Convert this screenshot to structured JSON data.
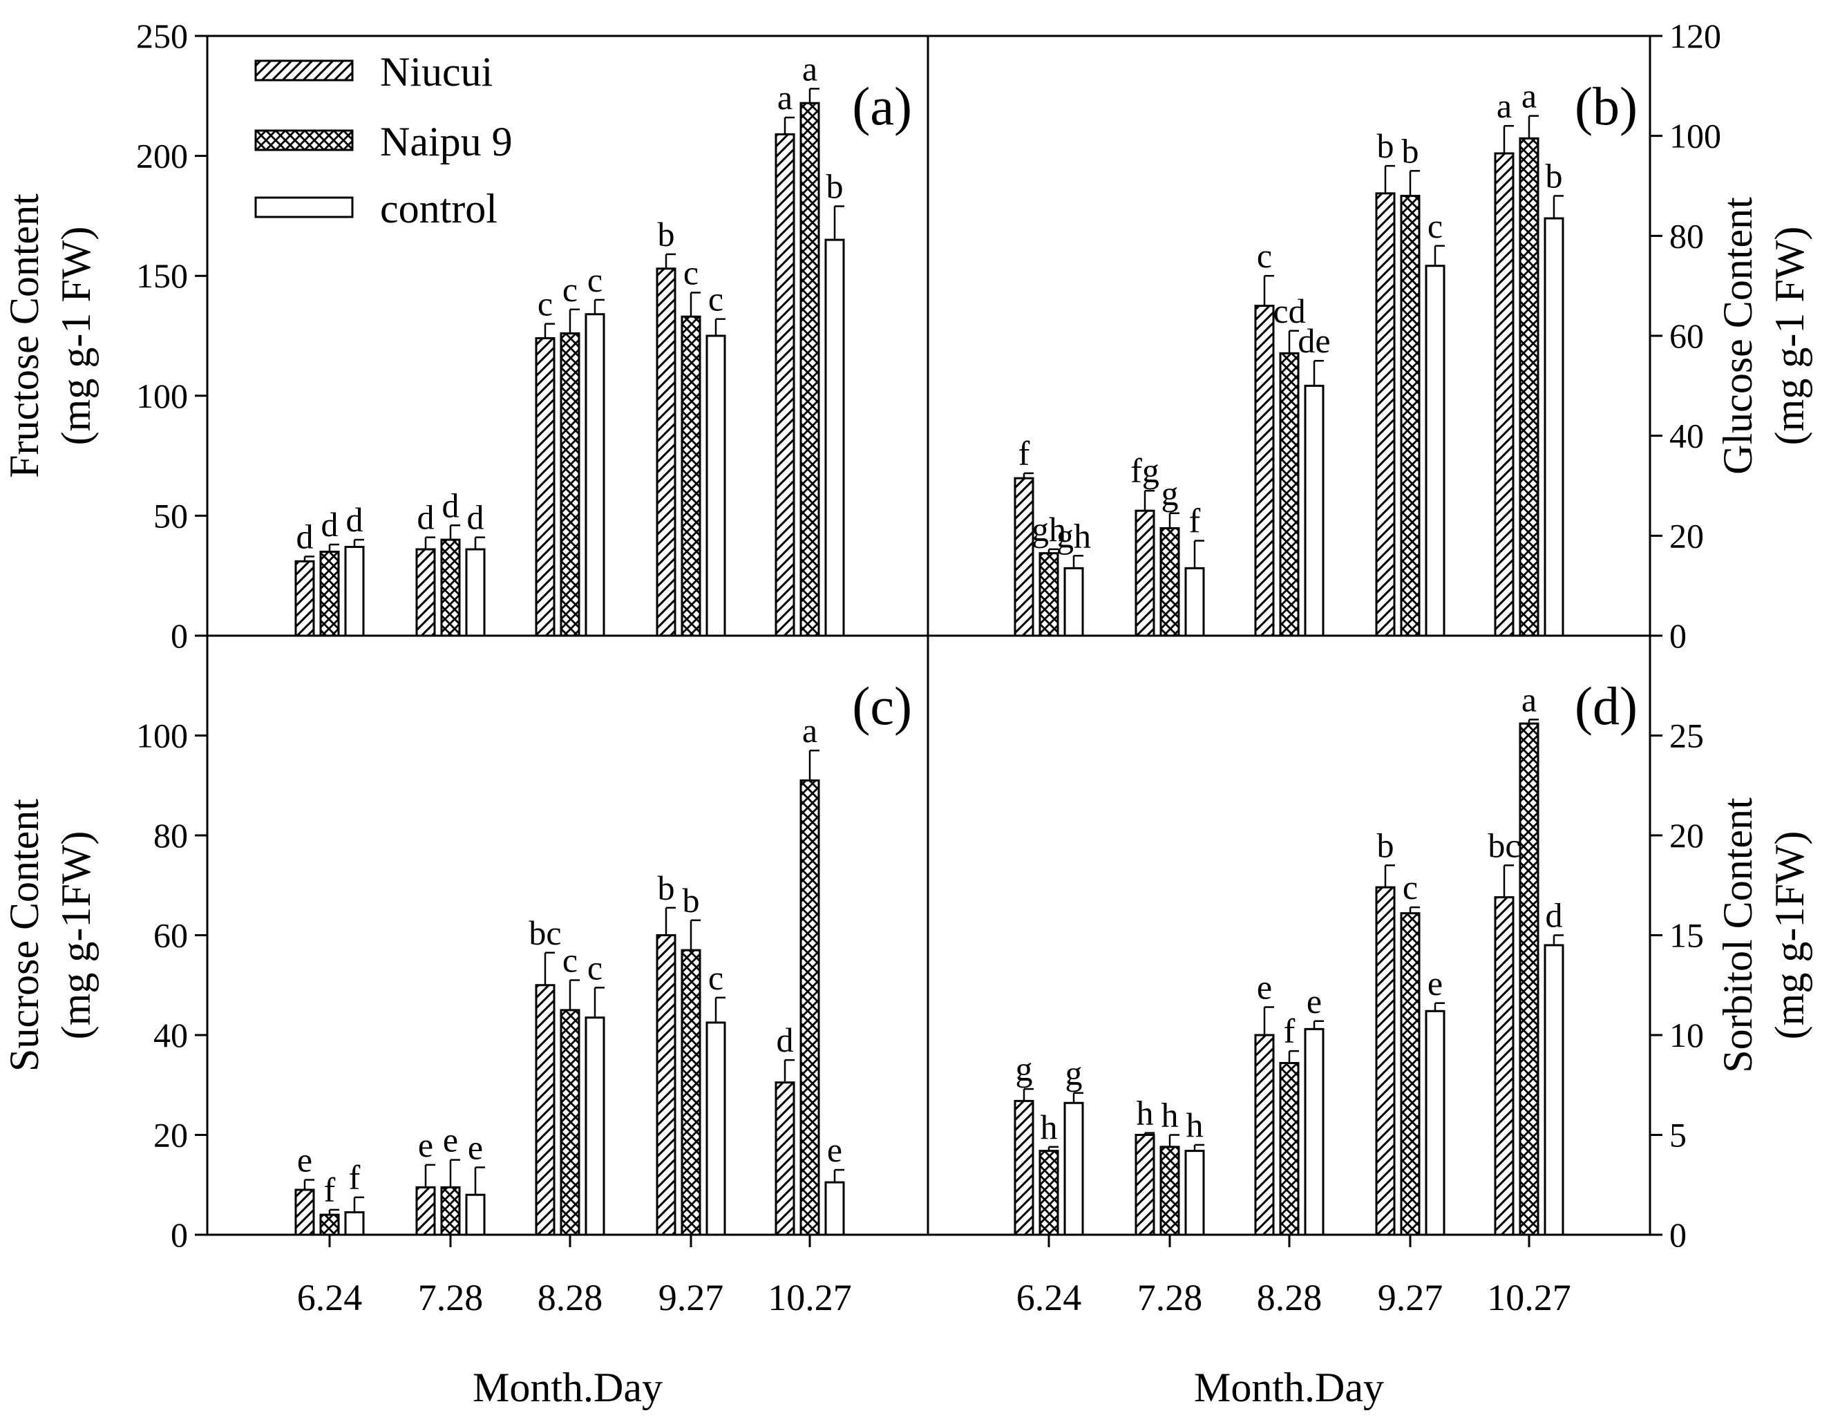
{
  "chart_data": [
    {
      "panel": "(a)",
      "type": "bar",
      "ylabel": "Fructose Content",
      "yunit": "(mg g-1 FW)",
      "ylim": [
        0,
        250
      ],
      "yticks": [
        0,
        50,
        100,
        150,
        200,
        250
      ],
      "categories": [
        "6.24",
        "7.28",
        "8.28",
        "9.27",
        "10.27"
      ],
      "series": [
        {
          "name": "Niucui",
          "values": [
            31,
            36,
            124,
            153,
            209
          ],
          "errors": [
            2,
            5,
            6,
            6,
            7
          ],
          "labels": [
            "d",
            "d",
            "c",
            "b",
            "a"
          ]
        },
        {
          "name": "Naipu 9",
          "values": [
            35,
            40,
            126,
            133,
            222
          ],
          "errors": [
            3,
            6,
            10,
            10,
            6
          ],
          "labels": [
            "d",
            "d",
            "c",
            "c",
            "a"
          ]
        },
        {
          "name": "control",
          "values": [
            37,
            36,
            134,
            125,
            165
          ],
          "errors": [
            3,
            5,
            6,
            7,
            14
          ],
          "labels": [
            "d",
            "d",
            "c",
            "c",
            "b"
          ]
        }
      ]
    },
    {
      "panel": "(b)",
      "type": "bar",
      "ylabel": "Glucose Content",
      "yunit": "(mg g-1 FW)",
      "ylim": [
        0,
        120
      ],
      "yticks": [
        0,
        20,
        40,
        60,
        80,
        100,
        120
      ],
      "categories": [
        "6.24",
        "7.28",
        "8.28",
        "9.27",
        "10.27"
      ],
      "series": [
        {
          "name": "Niucui",
          "values": [
            31.5,
            25,
            66,
            88.5,
            96.5
          ],
          "errors": [
            1,
            4,
            6,
            5.5,
            5.5
          ],
          "labels": [
            "f",
            "fg",
            "c",
            "b",
            "a"
          ]
        },
        {
          "name": "Naipu 9",
          "values": [
            16.5,
            21.5,
            56.5,
            88,
            99.5
          ],
          "errors": [
            0.8,
            3,
            4.5,
            5,
            4.5
          ],
          "labels": [
            "gh",
            "g",
            "cd",
            "b",
            "a"
          ]
        },
        {
          "name": "control",
          "values": [
            13.5,
            13.5,
            50,
            74,
            83.5
          ],
          "errors": [
            2.5,
            5.5,
            5,
            4,
            4.5
          ],
          "labels": [
            "gh",
            "f",
            "de",
            "c",
            "b"
          ]
        }
      ]
    },
    {
      "panel": "(c)",
      "type": "bar",
      "xlabel": "Month.Day",
      "ylabel": "Sucrose Content",
      "yunit": "(mg g-1FW)",
      "ylim": [
        0,
        120
      ],
      "yticks": [
        0,
        20,
        40,
        60,
        80,
        100
      ],
      "categories": [
        "6.24",
        "7.28",
        "8.28",
        "9.27",
        "10.27"
      ],
      "series": [
        {
          "name": "Niucui",
          "values": [
            9,
            9.5,
            50,
            60,
            30.5
          ],
          "errors": [
            2,
            4.5,
            6.5,
            5.5,
            4.5
          ],
          "labels": [
            "e",
            "e",
            "bc",
            "b",
            "d"
          ]
        },
        {
          "name": "Naipu 9",
          "values": [
            4,
            9.5,
            45,
            57,
            91
          ],
          "errors": [
            1,
            5.5,
            6,
            6,
            6
          ],
          "labels": [
            "f",
            "e",
            "c",
            "b",
            "a"
          ]
        },
        {
          "name": "control",
          "values": [
            4.5,
            8,
            43.5,
            42.5,
            10.5
          ],
          "errors": [
            3,
            5.5,
            6,
            5,
            2.5
          ],
          "labels": [
            "f",
            "e",
            "c",
            "c",
            "e"
          ]
        }
      ]
    },
    {
      "panel": "(d)",
      "type": "bar",
      "xlabel": "Month.Day",
      "ylabel": "Sorbitol Content",
      "yunit": "(mg g-1FW)",
      "ylim": [
        0,
        30
      ],
      "yticks": [
        0,
        5,
        10,
        15,
        20,
        25
      ],
      "categories": [
        "6.24",
        "7.28",
        "8.28",
        "9.27",
        "10.27"
      ],
      "series": [
        {
          "name": "Niucui",
          "values": [
            6.7,
            5,
            10,
            17.4,
            16.9
          ],
          "errors": [
            0.6,
            0.1,
            1.4,
            1.1,
            1.6
          ],
          "labels": [
            "g",
            "h",
            "e",
            "b",
            "bc"
          ]
        },
        {
          "name": "Naipu 9",
          "values": [
            4.2,
            4.4,
            8.6,
            16.1,
            25.6
          ],
          "errors": [
            0.2,
            0.6,
            0.6,
            0.3,
            0.2
          ],
          "labels": [
            "h",
            "h",
            "f",
            "c",
            "a"
          ]
        },
        {
          "name": "control",
          "values": [
            6.6,
            4.2,
            10.3,
            11.2,
            14.5
          ],
          "errors": [
            0.5,
            0.3,
            0.4,
            0.4,
            0.5
          ],
          "labels": [
            "g",
            "h",
            "e",
            "e",
            "d"
          ]
        }
      ]
    }
  ],
  "legend": [
    {
      "name": "Niucui",
      "pattern": "hatch"
    },
    {
      "name": "Naipu 9",
      "pattern": "crosshatch"
    },
    {
      "name": "control",
      "pattern": "none"
    }
  ],
  "colors": {
    "stroke": "#000000",
    "background": "#ffffff"
  }
}
